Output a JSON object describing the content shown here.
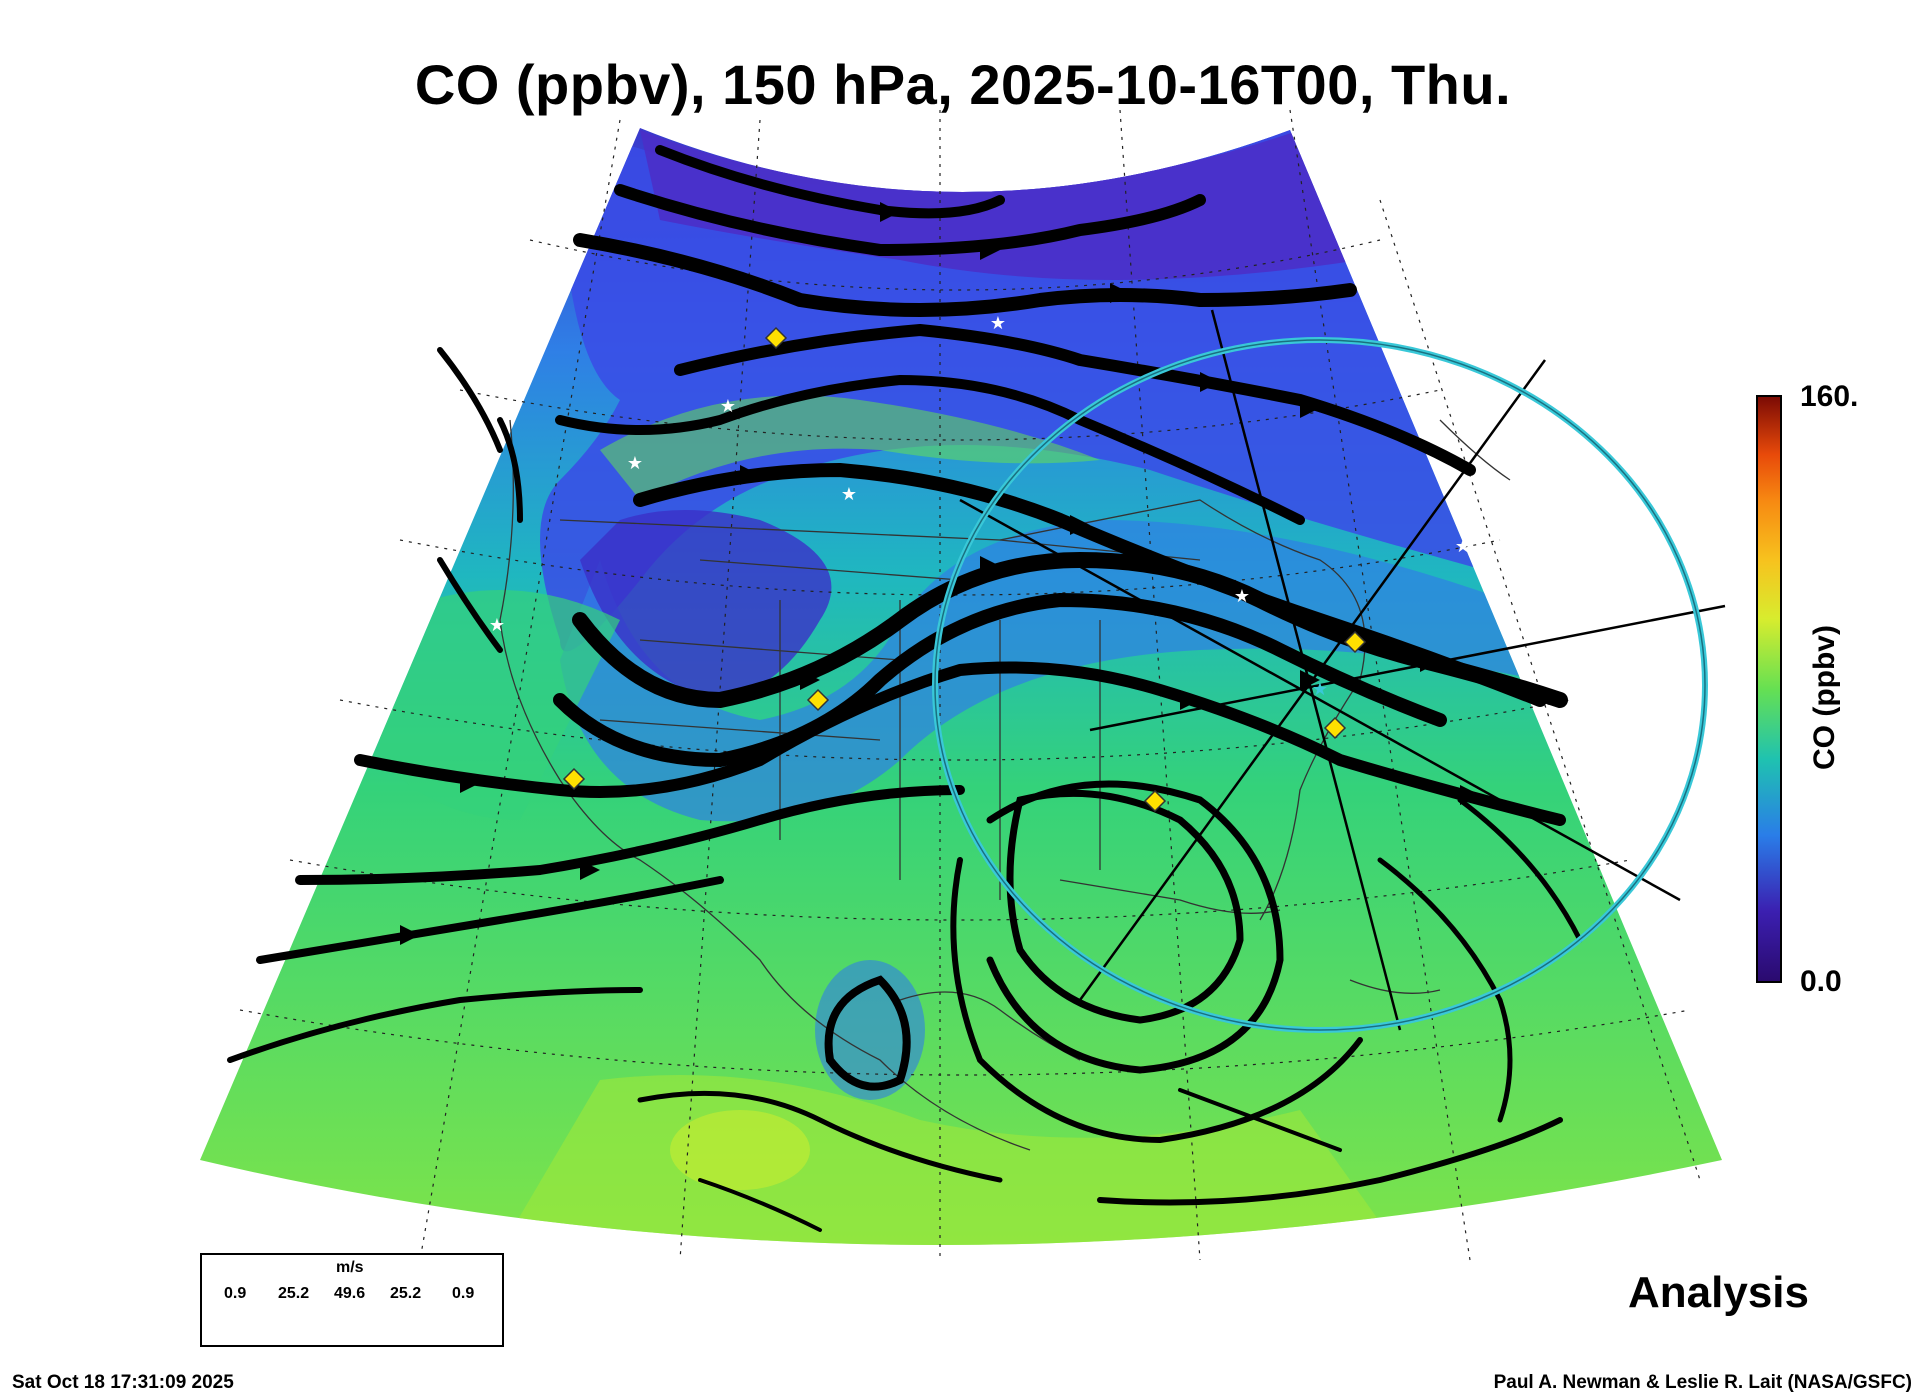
{
  "title": "CO (ppbv), 150 hPa, 2025-10-16T00, Thu.",
  "colorbar": {
    "max_label": "160.",
    "min_label": "0.0",
    "title": "CO (ppbv)",
    "colors": [
      "#2a0a6e",
      "#3b1fb0",
      "#3a4be6",
      "#2a7de8",
      "#1fa6d6",
      "#1fc2b0",
      "#35d68a",
      "#66e052",
      "#9ee83a",
      "#d8ec2e",
      "#f7c21e",
      "#f78a12",
      "#e84a0a",
      "#c01a06",
      "#7a0a04"
    ]
  },
  "field_colors": {
    "low": "#3b2fc8",
    "mid_low": "#2f7fe6",
    "mid": "#1fb7c0",
    "mid_high": "#34d27a",
    "high": "#8fe83e"
  },
  "analysis_label": "Analysis",
  "legend": {
    "unit": "m/s",
    "values": [
      "0.9",
      "25.2",
      "49.6",
      "25.2",
      "0.9"
    ]
  },
  "footer": {
    "timestamp": "Sat Oct 18 17:31:09 2025",
    "credit": "Paul A. Newman & Leslie R. Lait (NASA/GSFC)"
  },
  "markers": {
    "star_color": "#ffffff",
    "diamond_color": "#ffe000",
    "ring_color": "#39c8d8"
  }
}
